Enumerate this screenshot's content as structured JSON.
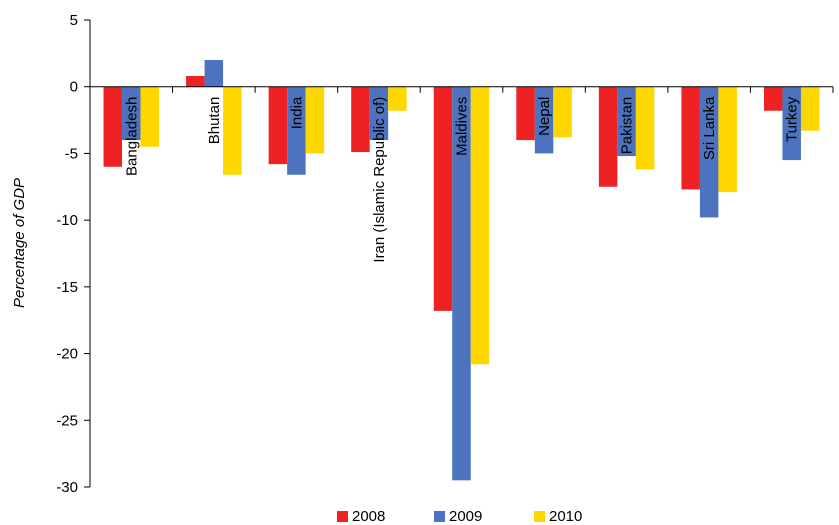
{
  "chart_data": {
    "type": "bar",
    "title": "",
    "xlabel": "",
    "ylabel": "Percentage of GDP",
    "ylim": [
      -30,
      5
    ],
    "yticks": [
      5,
      0,
      -5,
      -10,
      -15,
      -20,
      -25,
      -30
    ],
    "grid": false,
    "legend_position": "bottom",
    "categories": [
      "Bangladesh",
      "Bhutan",
      "India",
      "Iran (Islamic Republic of)",
      "Maldives",
      "Nepal",
      "Pakistan",
      "Sri Lanka",
      "Turkey"
    ],
    "series": [
      {
        "name": "2008",
        "color": "#ee2222",
        "values": [
          -6.0,
          0.8,
          -5.8,
          -4.9,
          -16.8,
          -4.0,
          -7.5,
          -7.7,
          -1.8
        ]
      },
      {
        "name": "2009",
        "color": "#4e73be",
        "values": [
          -4.0,
          2.0,
          -6.6,
          -4.0,
          -29.5,
          -5.0,
          -5.2,
          -9.8,
          -5.5
        ]
      },
      {
        "name": "2010",
        "color": "#ffd700",
        "values": [
          -4.5,
          -6.6,
          -5.0,
          -1.8,
          -20.8,
          -3.8,
          -6.2,
          -7.9,
          -3.3
        ]
      }
    ]
  }
}
